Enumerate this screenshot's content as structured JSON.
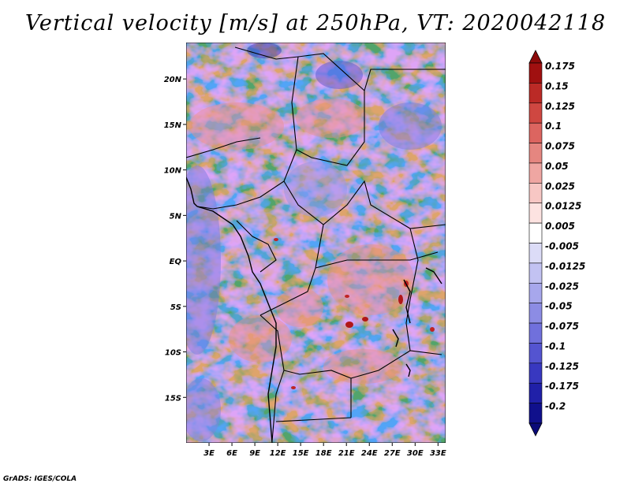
{
  "title": "Vertical velocity [m/s] at 250hPa, VT: 2020042118",
  "credit": "GrADS: IGES/COLA",
  "map": {
    "lat_range": [
      -20,
      24
    ],
    "lon_range": [
      0,
      34
    ],
    "lat_labels": [
      "20N",
      "15N",
      "10N",
      "5N",
      "EQ",
      "5S",
      "10S",
      "15S"
    ],
    "lon_labels": [
      "3E",
      "6E",
      "9E",
      "12E",
      "15E",
      "18E",
      "21E",
      "24E",
      "27E",
      "30E",
      "33E"
    ]
  },
  "colorbar": {
    "labels": [
      "0.175",
      "0.15",
      "0.125",
      "0.1",
      "0.075",
      "0.05",
      "0.025",
      "0.0125",
      "0.005",
      "-0.005",
      "-0.0125",
      "-0.025",
      "-0.05",
      "-0.075",
      "-0.1",
      "-0.125",
      "-0.175",
      "-0.2"
    ],
    "colors": [
      "#a01010",
      "#bb2a26",
      "#cf4741",
      "#dc6560",
      "#e58680",
      "#efa6a2",
      "#f7c7c4",
      "#fde3e1",
      "#ffffff",
      "#dcdcf7",
      "#c2c2f2",
      "#a7a7ec",
      "#8c8ce4",
      "#7070dc",
      "#5454d0",
      "#3838c0",
      "#2020a8",
      "#10108c"
    ],
    "top_color": "#8c0a0a",
    "bottom_color": "#0a0a78"
  }
}
